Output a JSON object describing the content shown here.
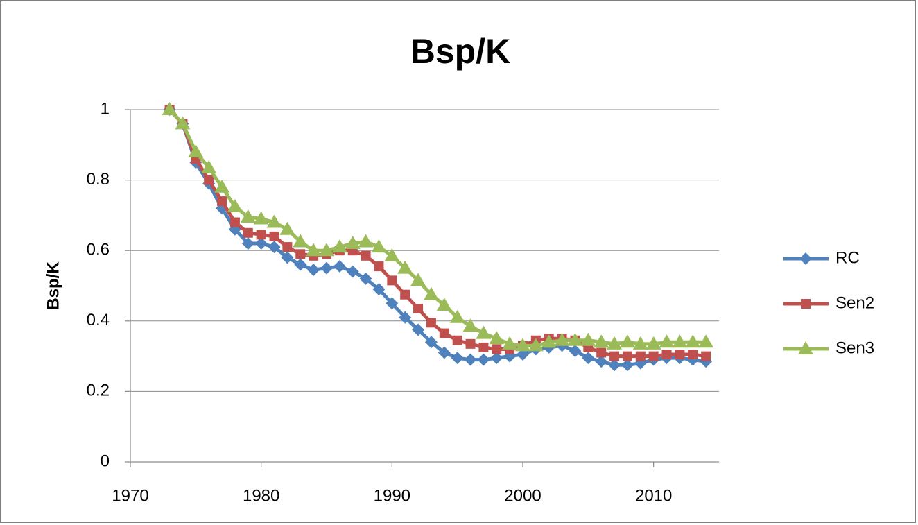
{
  "chart_data": {
    "type": "line",
    "title": "Bsp/K",
    "y_label": "Bsp/K",
    "x": [
      1973,
      1974,
      1975,
      1976,
      1977,
      1978,
      1979,
      1980,
      1981,
      1982,
      1983,
      1984,
      1985,
      1986,
      1987,
      1988,
      1989,
      1990,
      1991,
      1992,
      1993,
      1994,
      1995,
      1996,
      1997,
      1998,
      1999,
      2000,
      2001,
      2002,
      2003,
      2004,
      2005,
      2006,
      2007,
      2008,
      2009,
      2010,
      2011,
      2012,
      2013,
      2014
    ],
    "series": [
      {
        "name": "RC",
        "color": "#4f81bd",
        "marker": "diamond",
        "values": [
          1.0,
          0.96,
          0.85,
          0.79,
          0.72,
          0.66,
          0.62,
          0.62,
          0.61,
          0.58,
          0.56,
          0.545,
          0.55,
          0.555,
          0.54,
          0.52,
          0.49,
          0.45,
          0.41,
          0.375,
          0.34,
          0.31,
          0.295,
          0.29,
          0.29,
          0.295,
          0.3,
          0.305,
          0.32,
          0.325,
          0.33,
          0.315,
          0.295,
          0.285,
          0.275,
          0.275,
          0.28,
          0.29,
          0.295,
          0.295,
          0.29,
          0.285
        ]
      },
      {
        "name": "Sen2",
        "color": "#c0504d",
        "marker": "square",
        "values": [
          1.0,
          0.96,
          0.86,
          0.8,
          0.74,
          0.68,
          0.65,
          0.645,
          0.64,
          0.61,
          0.59,
          0.585,
          0.59,
          0.6,
          0.6,
          0.585,
          0.555,
          0.515,
          0.475,
          0.435,
          0.395,
          0.365,
          0.345,
          0.335,
          0.325,
          0.32,
          0.32,
          0.33,
          0.345,
          0.35,
          0.35,
          0.345,
          0.325,
          0.31,
          0.3,
          0.3,
          0.3,
          0.3,
          0.305,
          0.305,
          0.305,
          0.3
        ]
      },
      {
        "name": "Sen3",
        "color": "#9bbb59",
        "marker": "triangle",
        "values": [
          1.0,
          0.96,
          0.88,
          0.835,
          0.78,
          0.725,
          0.695,
          0.69,
          0.68,
          0.66,
          0.625,
          0.6,
          0.6,
          0.61,
          0.62,
          0.625,
          0.61,
          0.585,
          0.55,
          0.515,
          0.475,
          0.445,
          0.41,
          0.385,
          0.365,
          0.35,
          0.335,
          0.33,
          0.33,
          0.34,
          0.345,
          0.345,
          0.345,
          0.34,
          0.335,
          0.34,
          0.335,
          0.335,
          0.34,
          0.34,
          0.34,
          0.34
        ]
      }
    ],
    "xlim": [
      1970,
      2015
    ],
    "xticks": [
      1970,
      1980,
      1990,
      2000,
      2010
    ],
    "ylim": [
      0,
      1
    ],
    "yticks": [
      0,
      0.2,
      0.4,
      0.6,
      0.8,
      1
    ],
    "grid": true,
    "legend": "right"
  }
}
